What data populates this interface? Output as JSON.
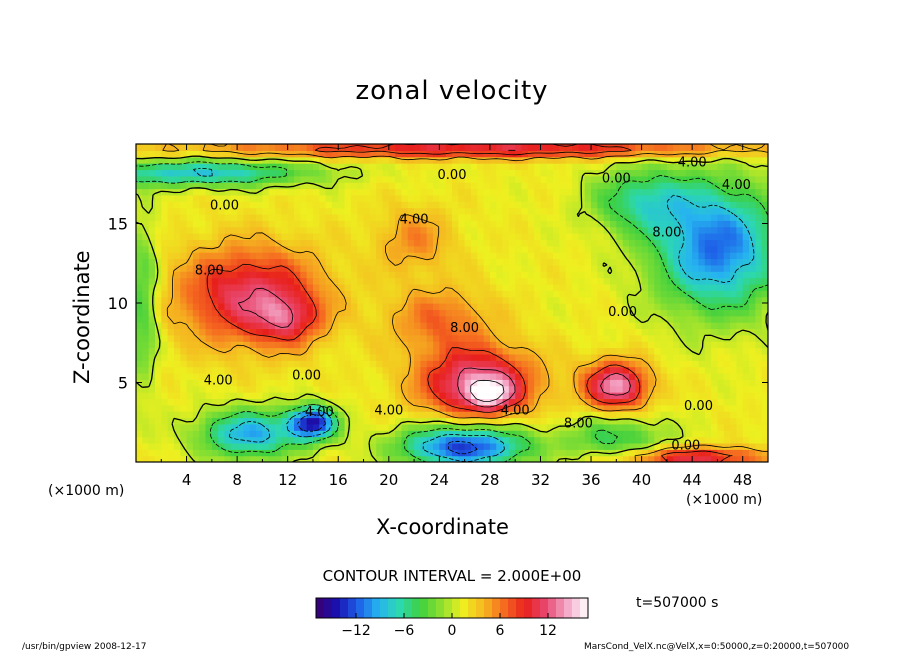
{
  "chart_data": {
    "type": "heatmap",
    "title": "zonal velocity",
    "xlabel": "X-coordinate",
    "ylabel": "Z-coordinate",
    "x_unit_label": "(×1000 m)",
    "x_ticks": [
      4,
      8,
      12,
      16,
      20,
      24,
      28,
      32,
      36,
      40,
      44,
      48
    ],
    "y_ticks": [
      5,
      10,
      15
    ],
    "xlim": [
      0,
      50
    ],
    "ylim": [
      0,
      20
    ],
    "contour_interval_text": "CONTOUR INTERVAL = 2.000E+00",
    "colorbar": {
      "range": [
        -17,
        17
      ],
      "ticks": [
        -12,
        -6,
        0,
        6,
        12
      ],
      "tick_labels": [
        "−12",
        "−6",
        "0",
        "6",
        "12"
      ]
    },
    "contour_labels": [
      {
        "text": "4.00",
        "x": 44.0,
        "y": 18.9
      },
      {
        "text": "0.00",
        "x": 25.0,
        "y": 18.1
      },
      {
        "text": "0.00",
        "x": 38.0,
        "y": 17.9
      },
      {
        "text": "0.00",
        "x": 7.0,
        "y": 16.2
      },
      {
        "text": "4.00",
        "x": 22.0,
        "y": 15.3
      },
      {
        "text": "8.00",
        "x": 42.0,
        "y": 14.5
      },
      {
        "text": "4.00",
        "x": 47.5,
        "y": 17.5
      },
      {
        "text": "8.00",
        "x": 5.8,
        "y": 12.1
      },
      {
        "text": "8.00",
        "x": 26.0,
        "y": 8.5
      },
      {
        "text": "0.00",
        "x": 38.5,
        "y": 9.5
      },
      {
        "text": "4.00",
        "x": 6.5,
        "y": 5.2
      },
      {
        "text": "0.00",
        "x": 13.5,
        "y": 5.5
      },
      {
        "text": "4.00",
        "x": 14.5,
        "y": 3.2
      },
      {
        "text": "4.00",
        "x": 20.0,
        "y": 3.3
      },
      {
        "text": "4.00",
        "x": 30.0,
        "y": 3.3
      },
      {
        "text": "8.00",
        "x": 35.0,
        "y": 2.5
      },
      {
        "text": "0.00",
        "x": 44.5,
        "y": 3.6
      },
      {
        "text": "0.00",
        "x": 43.5,
        "y": 1.1
      }
    ],
    "features": [
      {
        "x": 9.0,
        "y": 10.5,
        "value": 10,
        "sx": 5.5,
        "sy": 3.0
      },
      {
        "x": 12.0,
        "y": 9.0,
        "value": 6,
        "sx": 2.5,
        "sy": 1.5
      },
      {
        "x": 27.0,
        "y": 5.0,
        "value": 12,
        "sx": 4.5,
        "sy": 2.2
      },
      {
        "x": 28.0,
        "y": 4.3,
        "value": 8,
        "sx": 1.8,
        "sy": 0.9
      },
      {
        "x": 38.0,
        "y": 4.8,
        "value": 13,
        "sx": 2.5,
        "sy": 1.5
      },
      {
        "x": 24.0,
        "y": 9.0,
        "value": 5,
        "sx": 4.0,
        "sy": 2.0
      },
      {
        "x": 22.0,
        "y": 14.0,
        "value": 4,
        "sx": 3.0,
        "sy": 2.0
      },
      {
        "x": 46.0,
        "y": 13.5,
        "value": -13,
        "sx": 5.0,
        "sy": 4.0
      },
      {
        "x": 40.0,
        "y": 16.5,
        "value": -7,
        "sx": 4.0,
        "sy": 2.0
      },
      {
        "x": 9.0,
        "y": 1.8,
        "value": -11,
        "sx": 4.0,
        "sy": 1.5
      },
      {
        "x": 14.0,
        "y": 2.5,
        "value": -16,
        "sx": 1.8,
        "sy": 1.0
      },
      {
        "x": 26.0,
        "y": 1.0,
        "value": -15,
        "sx": 5.0,
        "sy": 1.3
      },
      {
        "x": 38.0,
        "y": 1.5,
        "value": -6,
        "sx": 4.0,
        "sy": 1.5
      },
      {
        "x": 5.0,
        "y": 18.2,
        "value": -10,
        "sx": 9.0,
        "sy": 0.8
      },
      {
        "x": 28.0,
        "y": 19.7,
        "value": 10,
        "sx": 22.0,
        "sy": 0.5
      },
      {
        "x": 44.0,
        "y": 0.3,
        "value": 10,
        "sx": 6.0,
        "sy": 0.6
      },
      {
        "x": 0.5,
        "y": 10.0,
        "value": -6,
        "sx": 1.2,
        "sy": 5.0
      }
    ]
  },
  "time_label": "t=507000 s",
  "footer_left": "/usr/bin/gpview   2008-12-17",
  "footer_right": "MarsCond_VelX.nc@VelX,x=0:50000,z=0:20000,t=507000",
  "colors": {
    "scale": [
      "#3a006e",
      "#1a10b0",
      "#1e5ee8",
      "#26b4f0",
      "#2cd8b0",
      "#3ed040",
      "#8ee030",
      "#eef020",
      "#f5b820",
      "#f56a20",
      "#e8201c",
      "#e84870",
      "#f4a8c8",
      "#ffffff"
    ]
  }
}
